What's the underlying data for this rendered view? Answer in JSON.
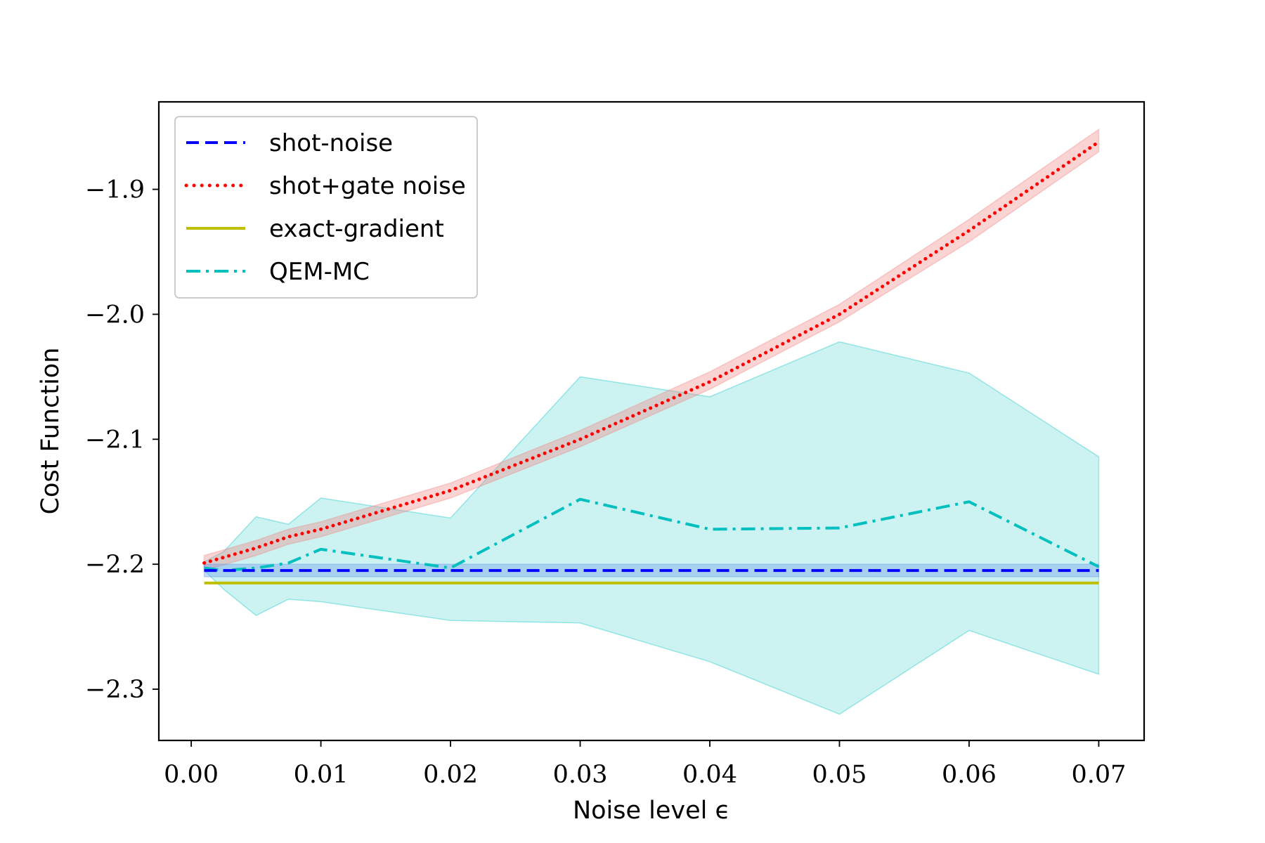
{
  "chart_data": {
    "type": "line",
    "title": "",
    "xlabel": "Noise level ϵ",
    "ylabel": "Cost Function",
    "xlim": [
      -0.0025,
      0.0735
    ],
    "ylim": [
      -2.341,
      -1.83
    ],
    "xticks": [
      0.0,
      0.01,
      0.02,
      0.03,
      0.04,
      0.05,
      0.06,
      0.07
    ],
    "xtick_labels": [
      "0.00",
      "0.01",
      "0.02",
      "0.03",
      "0.04",
      "0.05",
      "0.06",
      "0.07"
    ],
    "yticks": [
      -1.9,
      -2.0,
      -2.1,
      -2.2,
      -2.3
    ],
    "ytick_labels": [
      "−1.9",
      "−2.0",
      "−2.1",
      "−2.2",
      "−2.3"
    ],
    "grid": false,
    "legend_position": "top-left",
    "series": [
      {
        "name": "shot-noise",
        "color": "#0000ff",
        "style": "dashed",
        "x": [
          0.001,
          0.07
        ],
        "y": [
          -2.205,
          -2.205
        ],
        "band": {
          "color": "#6495ed",
          "x": [
            0.001,
            0.07
          ],
          "lower": [
            -2.21,
            -2.21
          ],
          "upper": [
            -2.2,
            -2.2
          ]
        }
      },
      {
        "name": "shot+gate noise",
        "color": "#ff0000",
        "style": "dotted",
        "x": [
          0.001,
          0.005,
          0.0075,
          0.01,
          0.02,
          0.03,
          0.04,
          0.05,
          0.06,
          0.07
        ],
        "y": [
          -2.199,
          -2.187,
          -2.178,
          -2.172,
          -2.141,
          -2.1,
          -2.054,
          -2.0,
          -1.933,
          -1.862
        ],
        "band": {
          "color": "#f08080",
          "x": [
            0.001,
            0.005,
            0.0075,
            0.01,
            0.02,
            0.03,
            0.04,
            0.05,
            0.06,
            0.07
          ],
          "lower": [
            -2.205,
            -2.193,
            -2.184,
            -2.178,
            -2.147,
            -2.106,
            -2.06,
            -2.006,
            -1.942,
            -1.87
          ],
          "upper": [
            -2.193,
            -2.181,
            -2.172,
            -2.166,
            -2.135,
            -2.093,
            -2.046,
            -1.992,
            -1.924,
            -1.852
          ]
        }
      },
      {
        "name": "exact-gradient",
        "color": "#bfbf00",
        "style": "solid",
        "x": [
          0.001,
          0.07
        ],
        "y": [
          -2.215,
          -2.215
        ]
      },
      {
        "name": "QEM-MC",
        "color": "#00bfbf",
        "style": "dashdot",
        "x": [
          0.001,
          0.0025,
          0.005,
          0.0075,
          0.01,
          0.02,
          0.03,
          0.04,
          0.05,
          0.06,
          0.07
        ],
        "y": [
          -2.203,
          -2.205,
          -2.203,
          -2.199,
          -2.188,
          -2.203,
          -2.148,
          -2.172,
          -2.171,
          -2.15,
          -2.202
        ],
        "band": {
          "color": "#00bfbf",
          "x": [
            0.001,
            0.0025,
            0.005,
            0.0075,
            0.01,
            0.02,
            0.03,
            0.04,
            0.05,
            0.06,
            0.07
          ],
          "lower": [
            -2.205,
            -2.22,
            -2.241,
            -2.228,
            -2.23,
            -2.245,
            -2.247,
            -2.278,
            -2.32,
            -2.253,
            -2.288
          ],
          "upper": [
            -2.198,
            -2.19,
            -2.162,
            -2.168,
            -2.147,
            -2.163,
            -2.05,
            -2.066,
            -2.022,
            -2.047,
            -2.114
          ]
        }
      }
    ]
  }
}
